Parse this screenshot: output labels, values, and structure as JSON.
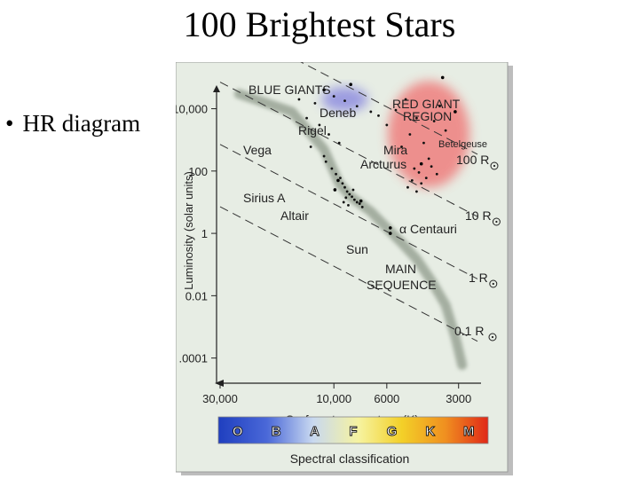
{
  "slide": {
    "title": "100 Brightest Stars",
    "bullet": "HR diagram"
  },
  "colors": {
    "panel_bg": "#e7ede4",
    "main_sequence": "#8e9a8a",
    "blue_giants": "#8f8ee0",
    "red_giants": "#f07070"
  },
  "chart_data": {
    "type": "scatter",
    "xlabel": "Surface temperature (K)",
    "ylabel": "Luminosity (solar units)",
    "x_scale": "log-reversed",
    "xlim": [
      30000,
      2500
    ],
    "ylim": [
      3e-05,
      50000
    ],
    "y_scale": "log",
    "x_ticks": [
      {
        "value": 30000,
        "label": "30,000"
      },
      {
        "value": 10000,
        "label": "10,000"
      },
      {
        "value": 6000,
        "label": "6000"
      },
      {
        "value": 3000,
        "label": "3000"
      }
    ],
    "y_ticks": [
      {
        "value": 10000,
        "label": "10,000"
      },
      {
        "value": 100,
        "label": "100"
      },
      {
        "value": 1,
        "label": "1"
      },
      {
        "value": 0.01,
        "label": "0.01"
      },
      {
        "value": 0.0001,
        "label": ".0001"
      }
    ],
    "regions": [
      {
        "label": "BLUE GIANTS"
      },
      {
        "label": "RED GIANT",
        "label2": "REGION"
      },
      {
        "label": "MAIN",
        "label2": "SEQUENCE"
      }
    ],
    "radius_lines": [
      {
        "label": "100 R",
        "radius": 100
      },
      {
        "label": "10 R",
        "radius": 10
      },
      {
        "label": "1 R",
        "radius": 1
      },
      {
        "label": "0.1 R",
        "radius": 0.1
      }
    ],
    "named_stars": [
      {
        "name": "Deneb",
        "temp": 8500,
        "lum": 60000
      },
      {
        "name": "Rigel",
        "temp": 11000,
        "lum": 40000
      },
      {
        "name": "Vega",
        "temp": 9600,
        "lum": 50
      },
      {
        "name": "Sirius A",
        "temp": 9900,
        "lum": 25
      },
      {
        "name": "Altair",
        "temp": 7700,
        "lum": 11
      },
      {
        "name": "Sun",
        "temp": 5800,
        "lum": 1
      },
      {
        "name": "α Centauri",
        "temp": 5800,
        "lum": 1.5
      },
      {
        "name": "Mira",
        "temp": 3100,
        "lum": 8000
      },
      {
        "name": "Arcturus",
        "temp": 4300,
        "lum": 170
      },
      {
        "name": "Betelgeuse",
        "temp": 3500,
        "lum": 100000
      }
    ],
    "stars": [
      {
        "temp": 14000,
        "lum": 20000
      },
      {
        "temp": 12000,
        "lum": 15000
      },
      {
        "temp": 10000,
        "lum": 25000
      },
      {
        "temp": 9000,
        "lum": 18000
      },
      {
        "temp": 8000,
        "lum": 12000
      },
      {
        "temp": 7000,
        "lum": 8000
      },
      {
        "temp": 6500,
        "lum": 6000
      },
      {
        "temp": 13000,
        "lum": 5000
      },
      {
        "temp": 11500,
        "lum": 3000
      },
      {
        "temp": 10500,
        "lum": 1500
      },
      {
        "temp": 9500,
        "lum": 800
      },
      {
        "temp": 12500,
        "lum": 600
      },
      {
        "temp": 11000,
        "lum": 300
      },
      {
        "temp": 10800,
        "lum": 200
      },
      {
        "temp": 10200,
        "lum": 120
      },
      {
        "temp": 9800,
        "lum": 80
      },
      {
        "temp": 9400,
        "lum": 60
      },
      {
        "temp": 9200,
        "lum": 40
      },
      {
        "temp": 9000,
        "lum": 30
      },
      {
        "temp": 8800,
        "lum": 22
      },
      {
        "temp": 8600,
        "lum": 18
      },
      {
        "temp": 8400,
        "lum": 15
      },
      {
        "temp": 8200,
        "lum": 12
      },
      {
        "temp": 8000,
        "lum": 10
      },
      {
        "temp": 7800,
        "lum": 9
      },
      {
        "temp": 7600,
        "lum": 7
      },
      {
        "temp": 8900,
        "lum": 14
      },
      {
        "temp": 8300,
        "lum": 25
      },
      {
        "temp": 8700,
        "lum": 8
      },
      {
        "temp": 9100,
        "lum": 10
      },
      {
        "temp": 5000,
        "lum": 20000
      },
      {
        "temp": 5500,
        "lum": 9000
      },
      {
        "temp": 6000,
        "lum": 3000
      },
      {
        "temp": 4800,
        "lum": 1500
      },
      {
        "temp": 4500,
        "lum": 5000
      },
      {
        "temp": 5200,
        "lum": 600
      },
      {
        "temp": 4200,
        "lum": 800
      },
      {
        "temp": 3800,
        "lum": 4000
      },
      {
        "temp": 3600,
        "lum": 12000
      },
      {
        "temp": 3400,
        "lum": 2000
      },
      {
        "temp": 4000,
        "lum": 250
      },
      {
        "temp": 4600,
        "lum": 120
      },
      {
        "temp": 4400,
        "lum": 90
      },
      {
        "temp": 4100,
        "lum": 60
      },
      {
        "temp": 3900,
        "lum": 140
      },
      {
        "temp": 4700,
        "lum": 50
      },
      {
        "temp": 4300,
        "lum": 40
      },
      {
        "temp": 4900,
        "lum": 30
      },
      {
        "temp": 3700,
        "lum": 80
      },
      {
        "temp": 4500,
        "lum": 22
      }
    ],
    "spectral_classes": [
      {
        "label": "O",
        "color": "#1f3fbf"
      },
      {
        "label": "B",
        "color": "#4a68d8"
      },
      {
        "label": "A",
        "color": "#c8d8f0"
      },
      {
        "label": "F",
        "color": "#f6f3a0"
      },
      {
        "label": "G",
        "color": "#f3d028"
      },
      {
        "label": "K",
        "color": "#f09020"
      },
      {
        "label": "M",
        "color": "#e02818"
      }
    ],
    "spectral_label": "Spectral classification",
    "grid": false
  }
}
